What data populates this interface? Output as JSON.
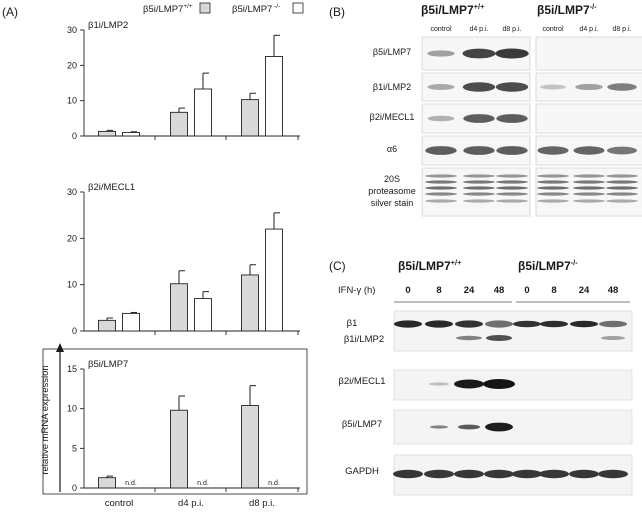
{
  "panel_a": {
    "label": "(A)",
    "legend": {
      "wt": "β5i/LMP7",
      "wt_sup": "+/+",
      "ko": "β5i/LMP7",
      "ko_sup": " -/-"
    },
    "ylabel": "relative mRNA expression",
    "nd_label": "n.d.",
    "colors": {
      "wt": "#d9d9d9",
      "ko": "#ffffff",
      "stroke": "#222222"
    }
  },
  "chart_data": [
    {
      "type": "bar",
      "title": "β1i/LMP2",
      "categories": [
        "control",
        "d4 p.i.",
        "d8 p.i."
      ],
      "ylim": [
        0,
        30
      ],
      "yticks": [
        "0",
        "10",
        "20",
        "30"
      ],
      "series": [
        {
          "name": "β5i/LMP7 +/+",
          "values": [
            1.3,
            6.7,
            10.3
          ],
          "errors": [
            0.3,
            1.2,
            1.8
          ]
        },
        {
          "name": "β5i/LMP7 -/-",
          "values": [
            1.0,
            13.3,
            22.5
          ],
          "errors": [
            0.2,
            4.5,
            6.0
          ]
        }
      ]
    },
    {
      "type": "bar",
      "title": "β2i/MECL1",
      "categories": [
        "control",
        "d4 p.i.",
        "d8 p.i."
      ],
      "ylim": [
        0,
        30
      ],
      "yticks": [
        "0",
        "10",
        "20",
        "30"
      ],
      "series": [
        {
          "name": "β5i/LMP7 +/+",
          "values": [
            2.3,
            10.2,
            12.1
          ],
          "errors": [
            0.5,
            2.8,
            2.2
          ]
        },
        {
          "name": "β5i/LMP7 -/-",
          "values": [
            3.8,
            7.0,
            22.0
          ],
          "errors": [
            0.2,
            1.5,
            3.5
          ]
        }
      ]
    },
    {
      "type": "bar",
      "title": "β5i/LMP7",
      "categories": [
        "control",
        "d4 p.i.",
        "d8 p.i."
      ],
      "ylim": [
        0,
        15
      ],
      "yticks": [
        "0",
        "5",
        "10",
        "15"
      ],
      "series": [
        {
          "name": "β5i/LMP7 +/+",
          "values": [
            1.3,
            9.8,
            10.4
          ],
          "errors": [
            0.2,
            1.8,
            2.5
          ]
        },
        {
          "name": "β5i/LMP7 -/-",
          "values": [
            null,
            null,
            null
          ],
          "errors": [
            null,
            null,
            null
          ]
        }
      ]
    }
  ],
  "panel_b": {
    "label": "(B)",
    "geno_wt": "β5i/LMP7",
    "geno_wt_sup": "+/+",
    "geno_ko": "β5i/LMP7",
    "geno_ko_sup": "-/-",
    "lanes_wt": [
      "control",
      "d4 p.i.",
      "d8 p.i."
    ],
    "lanes_ko": [
      "control",
      "d4 p.i.",
      "d8 p.i."
    ],
    "rows": [
      {
        "label": "β5i/LMP7",
        "wt": [
          0.35,
          0.9,
          0.95
        ],
        "ko": [
          0,
          0,
          0
        ]
      },
      {
        "label": "β1i/LMP2",
        "wt": [
          0.3,
          0.85,
          0.85
        ],
        "ko": [
          0.15,
          0.35,
          0.55
        ]
      },
      {
        "label": "β2i/MECL1",
        "wt": [
          0.25,
          0.75,
          0.75
        ],
        "ko": [
          0,
          0,
          0
        ]
      },
      {
        "label": "α6",
        "wt": [
          0.75,
          0.75,
          0.75
        ],
        "ko": [
          0.7,
          0.7,
          0.6
        ]
      }
    ],
    "silver_label": [
      "20S",
      "proteasome",
      "silver stain"
    ]
  },
  "panel_c": {
    "label": "(C)",
    "geno_wt": "β5i/LMP7",
    "geno_wt_sup": "+/+",
    "geno_ko": "β5i/LMP7",
    "geno_ko_sup": "-/-",
    "ifn_label": "IFN-γ (h)",
    "times_wt": [
      "0",
      "8",
      "24",
      "48"
    ],
    "times_ko": [
      "0",
      "8",
      "24",
      "48"
    ],
    "labels": {
      "beta1": "β1",
      "lmp2": "β1i/LMP2",
      "mecl1": "β2i/MECL1",
      "lmp7": "β5i/LMP7",
      "gapdh": "GAPDH"
    }
  }
}
